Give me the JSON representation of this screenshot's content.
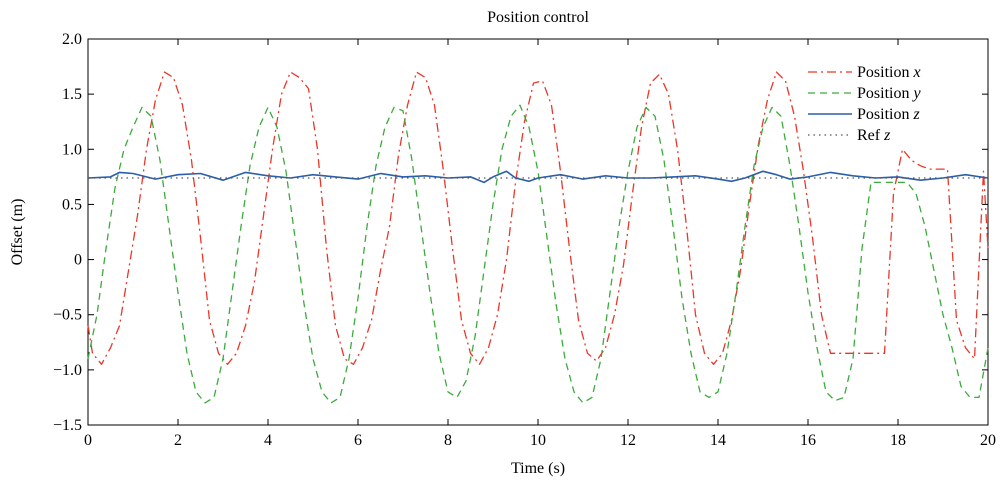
{
  "chart_data": {
    "type": "line",
    "title": "Position control",
    "xlabel": "Time (s)",
    "ylabel": "Offset (m)",
    "xlim": [
      0,
      20
    ],
    "ylim": [
      -1.5,
      2.0
    ],
    "xticks": [
      "0",
      "2",
      "4",
      "6",
      "8",
      "10",
      "12",
      "14",
      "16",
      "18",
      "20"
    ],
    "yticks": [
      "−1.5",
      "−1.0",
      "−0.5",
      "0",
      "0.5",
      "1.0",
      "1.5",
      "2.0"
    ],
    "grid": false,
    "legend_position": "top-right",
    "series": [
      {
        "name": "Position x",
        "name_prefix": "Position ",
        "name_var": "x",
        "color": "#e8372a",
        "style": "dashdot",
        "x": [
          0.0,
          0.1,
          0.3,
          0.5,
          0.7,
          0.9,
          1.1,
          1.3,
          1.5,
          1.7,
          1.9,
          2.1,
          2.3,
          2.5,
          2.7,
          2.9,
          3.1,
          3.3,
          3.5,
          3.7,
          3.9,
          4.1,
          4.3,
          4.5,
          4.7,
          4.9,
          5.1,
          5.3,
          5.5,
          5.7,
          5.9,
          6.1,
          6.3,
          6.5,
          6.7,
          6.9,
          7.1,
          7.3,
          7.5,
          7.7,
          7.9,
          8.1,
          8.3,
          8.5,
          8.7,
          8.9,
          9.1,
          9.3,
          9.5,
          9.7,
          9.9,
          10.1,
          10.3,
          10.5,
          10.7,
          10.9,
          11.1,
          11.3,
          11.5,
          11.7,
          11.9,
          12.1,
          12.3,
          12.5,
          12.7,
          12.9,
          13.1,
          13.3,
          13.5,
          13.7,
          13.9,
          14.1,
          14.3,
          14.5,
          14.7,
          14.9,
          15.1,
          15.3,
          15.5,
          15.7,
          15.9,
          16.1,
          16.3,
          16.5,
          16.7,
          16.9,
          17.1,
          17.3,
          17.5,
          17.7,
          17.9,
          18.1,
          18.3,
          18.5,
          18.7,
          18.9,
          19.1,
          19.3,
          19.5,
          19.7,
          19.9,
          20.0
        ],
        "values": [
          -0.6,
          -0.85,
          -0.95,
          -0.8,
          -0.6,
          -0.1,
          0.4,
          1.0,
          1.45,
          1.7,
          1.65,
          1.4,
          0.9,
          0.2,
          -0.55,
          -0.85,
          -0.95,
          -0.85,
          -0.6,
          -0.2,
          0.4,
          1.0,
          1.5,
          1.7,
          1.65,
          1.55,
          1.0,
          0.1,
          -0.6,
          -0.9,
          -0.95,
          -0.8,
          -0.55,
          -0.1,
          0.3,
          0.95,
          1.4,
          1.7,
          1.65,
          1.4,
          0.8,
          0.1,
          -0.55,
          -0.85,
          -0.95,
          -0.8,
          -0.5,
          0.0,
          0.7,
          1.25,
          1.6,
          1.62,
          1.4,
          0.8,
          0.1,
          -0.55,
          -0.85,
          -0.92,
          -0.8,
          -0.5,
          -0.05,
          0.6,
          1.2,
          1.6,
          1.68,
          1.5,
          1.0,
          0.3,
          -0.5,
          -0.85,
          -0.95,
          -0.85,
          -0.55,
          -0.1,
          0.5,
          1.05,
          1.45,
          1.7,
          1.62,
          1.3,
          0.8,
          0.2,
          -0.5,
          -0.85,
          -0.85,
          -0.85,
          -0.85,
          -0.85,
          -0.85,
          -0.85,
          0.6,
          1.0,
          0.9,
          0.85,
          0.82,
          0.82,
          0.82,
          -0.55,
          -0.8,
          -0.9,
          0.8,
          0.1
        ]
      },
      {
        "name": "Position y",
        "name_prefix": "Position ",
        "name_var": "y",
        "color": "#3caa3c",
        "style": "dashed",
        "x": [
          0.0,
          0.2,
          0.4,
          0.6,
          0.8,
          1.0,
          1.2,
          1.4,
          1.6,
          1.8,
          2.0,
          2.2,
          2.4,
          2.6,
          2.8,
          3.0,
          3.2,
          3.4,
          3.6,
          3.8,
          4.0,
          4.2,
          4.4,
          4.6,
          4.8,
          5.0,
          5.2,
          5.4,
          5.6,
          5.8,
          6.0,
          6.2,
          6.4,
          6.6,
          6.8,
          7.0,
          7.2,
          7.4,
          7.6,
          7.8,
          8.0,
          8.2,
          8.4,
          8.6,
          8.8,
          9.0,
          9.2,
          9.4,
          9.6,
          9.8,
          10.0,
          10.2,
          10.4,
          10.6,
          10.8,
          11.0,
          11.2,
          11.4,
          11.6,
          11.8,
          12.0,
          12.2,
          12.4,
          12.6,
          12.8,
          13.0,
          13.2,
          13.4,
          13.6,
          13.8,
          14.0,
          14.2,
          14.4,
          14.6,
          14.8,
          15.0,
          15.2,
          15.4,
          15.6,
          15.8,
          16.0,
          16.2,
          16.4,
          16.6,
          16.8,
          17.0,
          17.2,
          17.4,
          17.6,
          17.8,
          18.0,
          18.2,
          18.4,
          18.6,
          18.8,
          19.0,
          19.2,
          19.4,
          19.6,
          19.8,
          20.0
        ],
        "values": [
          -0.9,
          -0.5,
          0.1,
          0.65,
          1.0,
          1.2,
          1.38,
          1.3,
          0.9,
          0.3,
          -0.3,
          -0.85,
          -1.2,
          -1.3,
          -1.25,
          -0.9,
          -0.3,
          0.3,
          0.85,
          1.2,
          1.38,
          1.2,
          0.8,
          0.2,
          -0.4,
          -0.9,
          -1.2,
          -1.3,
          -1.25,
          -0.9,
          -0.35,
          0.3,
          0.85,
          1.2,
          1.38,
          1.35,
          0.9,
          0.3,
          -0.3,
          -0.85,
          -1.2,
          -1.25,
          -1.1,
          -0.7,
          -0.1,
          0.5,
          1.0,
          1.3,
          1.4,
          1.2,
          0.8,
          0.2,
          -0.4,
          -0.9,
          -1.2,
          -1.3,
          -1.25,
          -0.9,
          -0.3,
          0.3,
          0.8,
          1.2,
          1.38,
          1.3,
          0.9,
          0.3,
          -0.35,
          -0.85,
          -1.2,
          -1.25,
          -1.2,
          -0.85,
          -0.3,
          0.3,
          0.85,
          1.2,
          1.38,
          1.3,
          0.85,
          0.3,
          -0.3,
          -0.8,
          -1.2,
          -1.28,
          -1.25,
          -0.9,
          0.1,
          0.7,
          0.7,
          0.7,
          0.7,
          0.7,
          0.6,
          0.3,
          -0.1,
          -0.5,
          -0.8,
          -1.15,
          -1.25,
          -1.25,
          -0.8
        ]
      },
      {
        "name": "Position z",
        "name_prefix": "Position ",
        "name_var": "z",
        "color": "#2b5fa8",
        "style": "solid",
        "x": [
          0.0,
          0.5,
          0.7,
          1.0,
          1.5,
          2.0,
          2.5,
          3.0,
          3.5,
          4.0,
          4.5,
          5.0,
          5.5,
          6.0,
          6.5,
          7.0,
          7.5,
          8.0,
          8.5,
          8.8,
          9.0,
          9.3,
          9.5,
          9.8,
          10.0,
          10.5,
          11.0,
          11.5,
          12.0,
          12.5,
          13.0,
          13.5,
          14.0,
          14.3,
          14.6,
          15.0,
          15.3,
          15.6,
          16.0,
          16.5,
          17.0,
          17.5,
          18.0,
          18.5,
          19.0,
          19.5,
          20.0
        ],
        "values": [
          0.74,
          0.75,
          0.79,
          0.78,
          0.73,
          0.77,
          0.78,
          0.72,
          0.79,
          0.76,
          0.74,
          0.77,
          0.75,
          0.73,
          0.78,
          0.75,
          0.76,
          0.74,
          0.75,
          0.7,
          0.75,
          0.8,
          0.74,
          0.71,
          0.74,
          0.77,
          0.73,
          0.76,
          0.74,
          0.74,
          0.75,
          0.76,
          0.73,
          0.71,
          0.74,
          0.8,
          0.77,
          0.73,
          0.75,
          0.79,
          0.76,
          0.74,
          0.75,
          0.72,
          0.74,
          0.77,
          0.74
        ]
      },
      {
        "name": "Ref z",
        "name_prefix": "Ref ",
        "name_var": "z",
        "color": "#555555",
        "style": "dotted",
        "x": [
          0,
          20
        ],
        "values": [
          0.74,
          0.74
        ]
      }
    ]
  }
}
